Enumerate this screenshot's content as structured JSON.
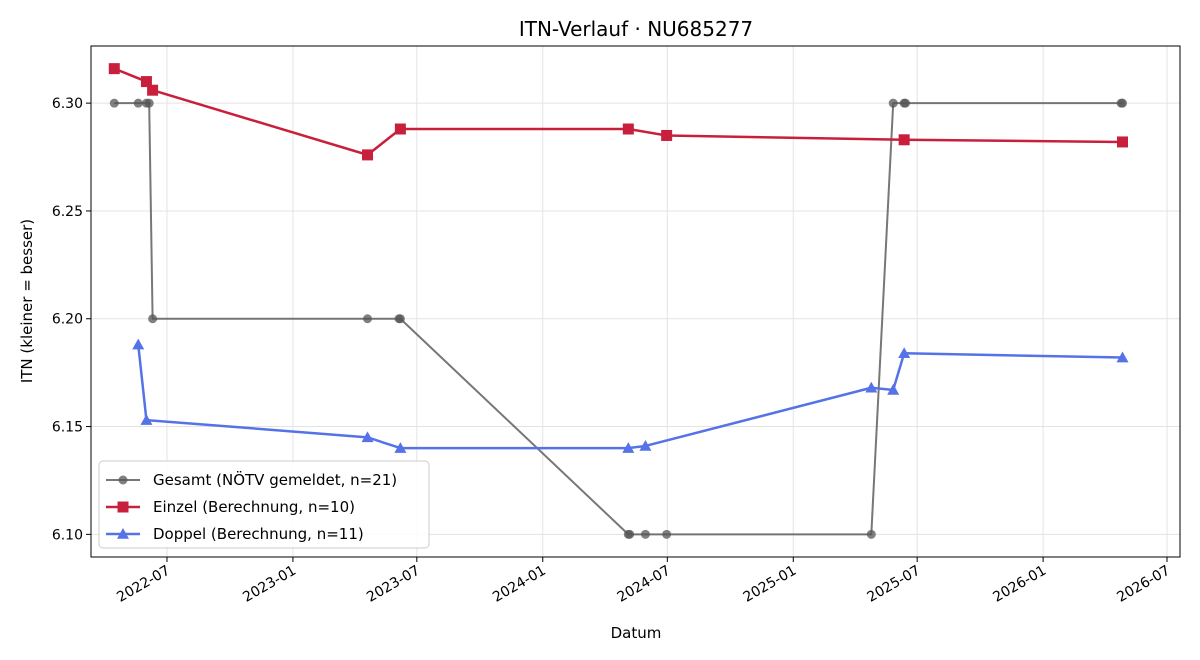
{
  "chart_data": {
    "type": "line",
    "title": "ITN-Verlauf · NU685277",
    "xlabel": "Datum",
    "ylabel": "ITN  (kleiner = besser)",
    "x_ticks": [
      "2022-07",
      "2023-01",
      "2023-07",
      "2024-01",
      "2024-07",
      "2025-01",
      "2025-07",
      "2026-01",
      "2026-07"
    ],
    "y_ticks": [
      "6.10",
      "6.15",
      "6.20",
      "6.25",
      "6.30"
    ],
    "xlim": [
      "2022-03-12",
      "2026-07-20"
    ],
    "ylim": [
      6.0895,
      6.3265
    ],
    "grid": true,
    "legend_position": "lower-left",
    "series": [
      {
        "name": "Gesamt (NÖTV gemeldet, n=21)",
        "color": "#555555",
        "marker": "circle",
        "x": [
          "2022-04-15",
          "2022-05-20",
          "2022-06-01",
          "2022-06-05",
          "2022-06-10",
          "2023-04-20",
          "2023-06-05",
          "2023-06-07",
          "2024-05-05",
          "2024-05-07",
          "2024-05-30",
          "2024-06-30",
          "2025-04-25",
          "2025-05-27",
          "2025-06-12",
          "2025-06-14",
          "2026-04-25",
          "2026-04-27"
        ],
        "y": [
          6.3,
          6.3,
          6.3,
          6.3,
          6.2,
          6.2,
          6.2,
          6.2,
          6.1,
          6.1,
          6.1,
          6.1,
          6.1,
          6.3,
          6.3,
          6.3,
          6.3,
          6.3
        ]
      },
      {
        "name": "Einzel (Berechnung, n=10)",
        "color": "#c8203c",
        "marker": "square",
        "x": [
          "2022-04-15",
          "2022-06-01",
          "2022-06-10",
          "2023-04-20",
          "2023-06-07",
          "2024-05-05",
          "2024-06-30",
          "2025-06-12",
          "2026-04-27"
        ],
        "y": [
          6.316,
          6.31,
          6.306,
          6.276,
          6.288,
          6.288,
          6.285,
          6.283,
          6.282
        ]
      },
      {
        "name": "Doppel (Berechnung, n=11)",
        "color": "#5573e6",
        "marker": "triangle",
        "x": [
          "2022-05-20",
          "2022-06-01",
          "2023-04-20",
          "2023-06-07",
          "2024-05-05",
          "2024-05-30",
          "2025-04-25",
          "2025-05-27",
          "2025-06-12",
          "2026-04-27"
        ],
        "y": [
          6.188,
          6.153,
          6.145,
          6.14,
          6.14,
          6.141,
          6.168,
          6.167,
          6.184,
          6.182
        ]
      }
    ]
  }
}
